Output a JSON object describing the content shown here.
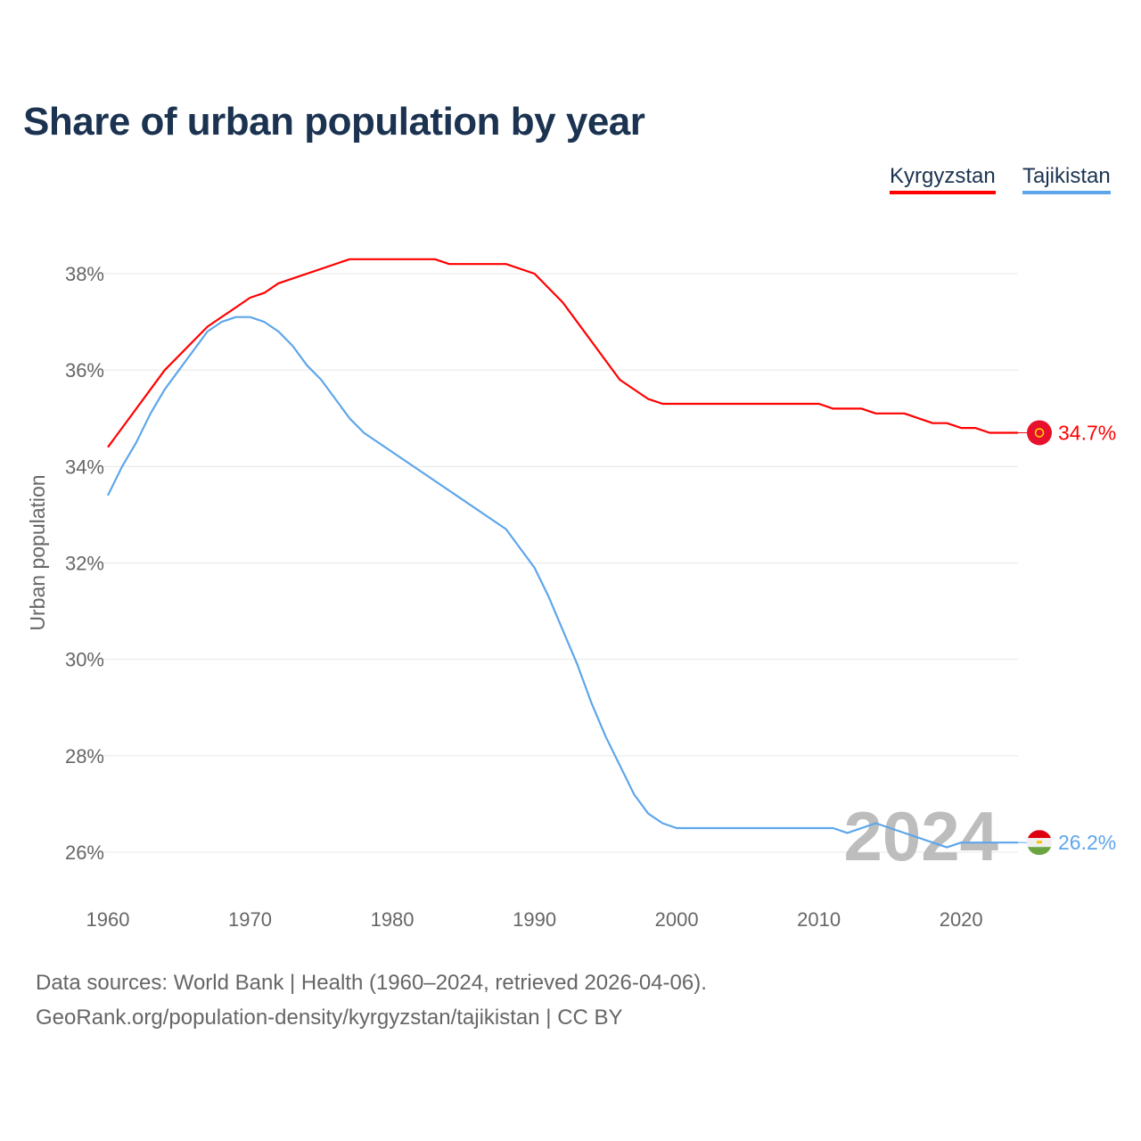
{
  "title": "Share of urban population by year",
  "legend": [
    {
      "label": "Kyrgyzstan"
    },
    {
      "label": "Tajikistan"
    }
  ],
  "year_watermark": "2024",
  "source_line1": "Data sources: World Bank | Health (1960–2024, retrieved 2026-04-06).",
  "source_line2": "GeoRank.org/population-density/kyrgyzstan/tajikistan | CC BY",
  "chart_data": {
    "type": "line",
    "title": "Share of urban population by year",
    "xlabel": "",
    "ylabel": "Urban population",
    "xlim": [
      1960,
      2024
    ],
    "ylim": [
      26,
      38
    ],
    "x_ticks": [
      1960,
      1970,
      1980,
      1990,
      2000,
      2010,
      2020
    ],
    "y_ticks": [
      26,
      28,
      30,
      32,
      34,
      36,
      38
    ],
    "y_tick_labels": [
      "26%",
      "28%",
      "30%",
      "32%",
      "34%",
      "36%",
      "38%"
    ],
    "grid": true,
    "legend_position": "top-right",
    "series": [
      {
        "name": "Kyrgyzstan",
        "color": "#ff0000",
        "end_label": "34.7%",
        "flag": "kyrgyzstan-flag",
        "points": [
          [
            1960,
            34.4
          ],
          [
            1964,
            36.0
          ],
          [
            1967,
            36.9
          ],
          [
            1970,
            37.5
          ],
          [
            1971,
            37.6
          ],
          [
            1972,
            37.8
          ],
          [
            1977,
            38.3
          ],
          [
            1983,
            38.3
          ],
          [
            1984,
            38.2
          ],
          [
            1988,
            38.2
          ],
          [
            1990,
            38.0
          ],
          [
            1992,
            37.4
          ],
          [
            1996,
            35.8
          ],
          [
            1998,
            35.4
          ],
          [
            1999,
            35.3
          ],
          [
            2010,
            35.3
          ],
          [
            2011,
            35.2
          ],
          [
            2013,
            35.2
          ],
          [
            2014,
            35.1
          ],
          [
            2016,
            35.1
          ],
          [
            2018,
            34.9
          ],
          [
            2019,
            34.9
          ],
          [
            2020,
            34.8
          ],
          [
            2021,
            34.8
          ],
          [
            2022,
            34.7
          ],
          [
            2024,
            34.7
          ]
        ]
      },
      {
        "name": "Tajikistan",
        "color": "#5ea6ea",
        "end_label": "26.2%",
        "flag": "tajikistan-flag",
        "points": [
          [
            1960,
            33.4
          ],
          [
            1961,
            34.0
          ],
          [
            1962,
            34.5
          ],
          [
            1963,
            35.1
          ],
          [
            1964,
            35.6
          ],
          [
            1967,
            36.8
          ],
          [
            1968,
            37.0
          ],
          [
            1969,
            37.1
          ],
          [
            1970,
            37.1
          ],
          [
            1971,
            37.0
          ],
          [
            1972,
            36.8
          ],
          [
            1973,
            36.5
          ],
          [
            1974,
            36.1
          ],
          [
            1975,
            35.8
          ],
          [
            1977,
            35.0
          ],
          [
            1978,
            34.7
          ],
          [
            1988,
            32.7
          ],
          [
            1990,
            31.9
          ],
          [
            1991,
            31.3
          ],
          [
            1993,
            29.9
          ],
          [
            1994,
            29.1
          ],
          [
            1995,
            28.4
          ],
          [
            1997,
            27.2
          ],
          [
            1998,
            26.8
          ],
          [
            1999,
            26.6
          ],
          [
            2000,
            26.5
          ],
          [
            2011,
            26.5
          ],
          [
            2012,
            26.4
          ],
          [
            2014,
            26.6
          ],
          [
            2019,
            26.1
          ],
          [
            2020,
            26.2
          ],
          [
            2024,
            26.2
          ]
        ]
      }
    ]
  }
}
